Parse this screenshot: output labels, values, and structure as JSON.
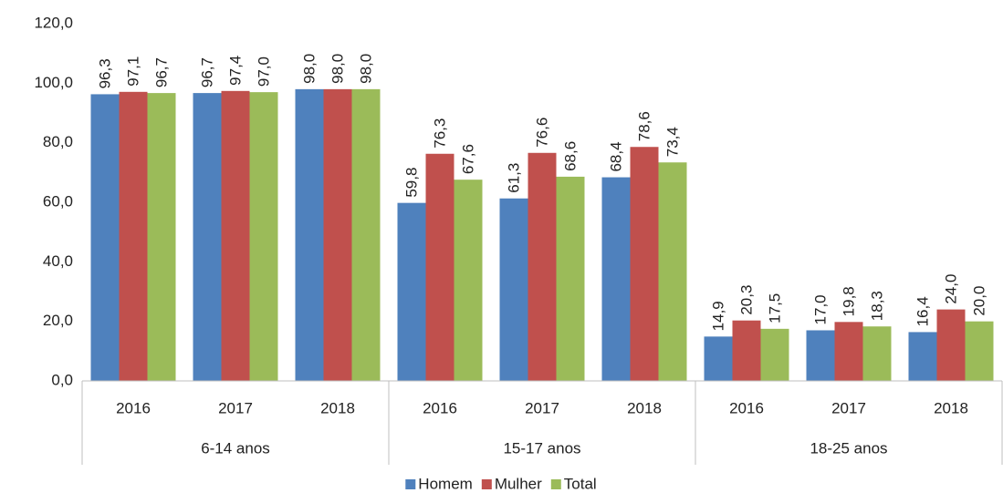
{
  "chart_data": {
    "type": "bar",
    "categories": [
      "2016",
      "2017",
      "2018",
      "2016",
      "2017",
      "2018",
      "2016",
      "2017",
      "2018"
    ],
    "groups": [
      "6-14 anos",
      "15-17 anos",
      "18-25 anos"
    ],
    "series": [
      {
        "name": "Homem",
        "color": "#4f81bd",
        "values": [
          96.3,
          96.7,
          98.0,
          59.8,
          61.3,
          68.4,
          14.9,
          17.0,
          16.4
        ],
        "value_labels": [
          "96,3",
          "96,7",
          "98,0",
          "59,8",
          "61,3",
          "68,4",
          "14,9",
          "17,0",
          "16,4"
        ]
      },
      {
        "name": "Mulher",
        "color": "#c0504d",
        "values": [
          97.1,
          97.4,
          98.0,
          76.3,
          76.6,
          78.6,
          20.3,
          19.8,
          24.0
        ],
        "value_labels": [
          "97,1",
          "97,4",
          "98,0",
          "76,3",
          "76,6",
          "78,6",
          "20,3",
          "19,8",
          "24,0"
        ]
      },
      {
        "name": "Total",
        "color": "#9bbb59",
        "values": [
          96.7,
          97.0,
          98.0,
          67.6,
          68.6,
          73.4,
          17.5,
          18.3,
          20.0
        ],
        "value_labels": [
          "96,7",
          "97,0",
          "98,0",
          "67,6",
          "68,6",
          "73,4",
          "17,5",
          "18,3",
          "20,0"
        ]
      }
    ],
    "ylim": [
      0,
      120
    ],
    "yticks": [
      {
        "value": 0,
        "label": "0,0"
      },
      {
        "value": 20,
        "label": "20,0"
      },
      {
        "value": 40,
        "label": "40,0"
      },
      {
        "value": 60,
        "label": "60,0"
      },
      {
        "value": 80,
        "label": "80,0"
      },
      {
        "value": 100,
        "label": "100,0"
      },
      {
        "value": 120,
        "label": "120,0"
      }
    ],
    "grid": false,
    "legend": "bottom"
  }
}
